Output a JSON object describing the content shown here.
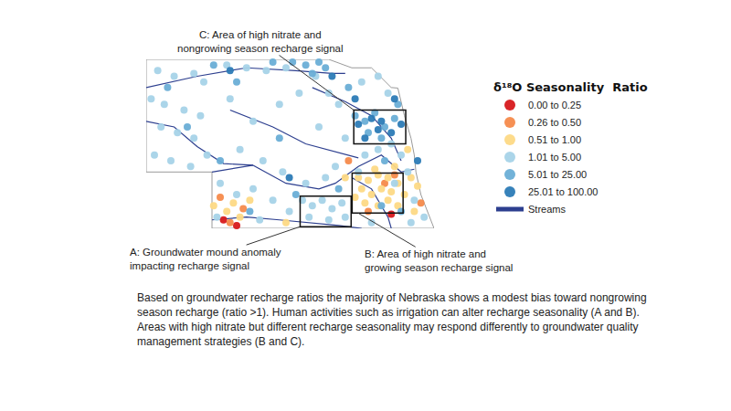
{
  "chart_data": {
    "type": "scatter",
    "xlim": [
      -104.05,
      -95.3
    ],
    "ylim": [
      40,
      43
    ],
    "tick_labels": false,
    "grid": false,
    "legend_title": "δ¹⁸O Seasonality  Ratio",
    "boundary": {
      "color": "#9a9a9a",
      "x": [
        -104.05,
        -98.5,
        -97.8,
        -97.2,
        -96.6,
        -96.4,
        -96.2,
        -96.0,
        -95.9,
        -95.85,
        -95.7,
        -95.3,
        -102.05,
        -102.05,
        -104.05,
        -104.05
      ],
      "y": [
        43.0,
        43.0,
        42.85,
        42.85,
        42.5,
        42.49,
        42.0,
        41.6,
        41.3,
        41.0,
        40.6,
        40.0,
        40.0,
        41.0,
        41.0,
        43.0
      ]
    },
    "series": [
      {
        "name": "Streams",
        "type": "line",
        "color": "#2d3f8f",
        "line_style": "solid",
        "x": [
          -104.05,
          -103.2,
          -102.5,
          -101.7,
          -100.8,
          null,
          -102.05,
          -101.5,
          -100.8,
          null,
          -100.8,
          -99.8,
          -98.8,
          -98.3,
          -97.6,
          -96.9,
          -96.3,
          -95.9,
          null,
          -104.05,
          -102.5,
          -101.0,
          -99.5,
          -98.4,
          -98.0,
          null,
          -101.5,
          -100.2,
          -99.2,
          -98.2,
          -97.6,
          null,
          -99.0,
          -98.0,
          -97.2,
          -96.6,
          -96.3,
          null,
          -102.05,
          -101.0,
          -100.0,
          -99.0,
          -98.2,
          -97.5,
          null,
          -97.8,
          -97.2,
          -96.7,
          -96.6
        ],
        "y": [
          41.9,
          41.8,
          41.45,
          41.15,
          41.12,
          null,
          41.0,
          41.05,
          41.12,
          null,
          41.12,
          40.8,
          40.7,
          40.8,
          41.1,
          41.3,
          41.0,
          41.05,
          null,
          42.5,
          42.7,
          42.85,
          42.8,
          42.75,
          42.75,
          null,
          42.1,
          41.8,
          41.5,
          41.35,
          41.25,
          null,
          42.5,
          42.25,
          42.0,
          41.6,
          41.2,
          null,
          40.15,
          40.2,
          40.15,
          40.1,
          40.05,
          40.0,
          null,
          40.9,
          40.7,
          40.2,
          40.0
        ]
      },
      {
        "name": "0.00 to 0.25",
        "color": "#d7191c",
        "marker": "circle",
        "x": [
          -101.3,
          -96.6,
          -101.7
        ],
        "y": [
          40.05,
          40.25,
          40.15
        ]
      },
      {
        "name": "0.26 to 0.50",
        "color": "#f58a4b",
        "marker": "circle",
        "x": [
          -101.5,
          -101.1,
          -101.8,
          -96.8,
          -97.3,
          -96.5,
          -95.7,
          -97.9
        ],
        "y": [
          40.1,
          40.35,
          40.55,
          40.8,
          40.3,
          40.95,
          40.45,
          41.2
        ]
      },
      {
        "name": "0.51 to 1.00",
        "color": "#fdd985",
        "marker": "circle",
        "x": [
          -97.6,
          -97.3,
          -97.0,
          -96.7,
          -97.5,
          -97.2,
          -96.9,
          -96.6,
          -96.4,
          -97.4,
          -97.0,
          -96.7,
          -96.4,
          -97.7,
          -96.2,
          -97.1,
          -96.5,
          -102.0,
          -101.6,
          -101.2,
          -100.9,
          -101.4,
          -95.8,
          -95.9,
          -96.0,
          -98.0,
          -99.8,
          -96.1
        ],
        "y": [
          40.9,
          40.85,
          40.95,
          40.9,
          40.7,
          40.6,
          40.7,
          40.65,
          40.8,
          40.45,
          40.4,
          40.5,
          40.4,
          40.55,
          40.6,
          41.05,
          41.1,
          40.4,
          40.3,
          40.2,
          40.5,
          40.45,
          40.75,
          40.3,
          40.9,
          40.9,
          40.1,
          41.4
        ]
      },
      {
        "name": "1.01 to 5.00",
        "color": "#a6d3e8",
        "marker": "circle",
        "x": [
          -103.7,
          -103.2,
          -102.6,
          -102.3,
          -103.9,
          -103.5,
          -102.9,
          -102.4,
          -103.6,
          -103.1,
          -102.6,
          -103.8,
          -103.3,
          -102.7,
          -102.2,
          -101.6,
          -101.0,
          -100.4,
          -99.8,
          -101.5,
          -100.8,
          -100.0,
          -99.4,
          -101.2,
          -100.5,
          -99.9,
          -101.8,
          -101.3,
          -100.8,
          -100.2,
          -99.7,
          -101.9,
          -100.6,
          -99.3,
          -99.0,
          -98.7,
          -98.4,
          -98.1,
          -99.1,
          -98.5,
          -98.0,
          -99.2,
          -98.6,
          -98.3,
          -98.9,
          -98.5,
          -98.2,
          -98.8,
          -98.0,
          -97.4,
          -97.0,
          -96.6,
          -96.3,
          -96.1,
          -96.5,
          -95.9,
          -95.6,
          -96.0,
          -97.2,
          -97.6,
          -97.5,
          -97.0,
          -96.7
        ],
        "y": [
          42.8,
          42.7,
          42.75,
          42.6,
          42.3,
          42.2,
          42.1,
          42.0,
          41.8,
          41.7,
          41.6,
          41.3,
          41.2,
          41.1,
          41.3,
          42.9,
          42.85,
          42.8,
          42.85,
          42.3,
          41.9,
          42.2,
          42.4,
          41.4,
          41.2,
          41.0,
          40.8,
          40.6,
          40.7,
          40.5,
          40.3,
          40.2,
          40.15,
          40.5,
          40.4,
          40.5,
          40.35,
          40.45,
          40.2,
          40.15,
          40.2,
          40.8,
          40.9,
          41.1,
          42.7,
          42.4,
          42.2,
          41.8,
          41.6,
          41.3,
          41.4,
          41.5,
          41.3,
          41.0,
          40.8,
          40.5,
          40.2,
          40.1,
          40.1,
          41.0,
          42.6,
          42.7,
          42.4
        ]
      },
      {
        "name": "5.01 to 25.00",
        "color": "#6aaed6",
        "marker": "circle",
        "x": [
          -99.6,
          -99.2,
          -98.8,
          -99.0,
          -98.6,
          -102.0,
          -101.3,
          -100.2,
          -97.7,
          -97.4,
          -97.1,
          -96.8,
          -96.5,
          -97.3,
          -96.9,
          -103.4,
          -102.8,
          -101.8,
          -100.9,
          -99.5,
          -98.2,
          -96.9,
          -96.3,
          -96.8,
          -97.9,
          -96.4,
          -100.0
        ],
        "y": [
          42.95,
          42.9,
          42.95,
          42.75,
          42.85,
          42.9,
          42.6,
          42.95,
          42.0,
          41.9,
          42.05,
          41.8,
          41.95,
          41.7,
          41.6,
          42.5,
          41.8,
          41.2,
          40.3,
          40.6,
          40.7,
          40.4,
          40.3,
          41.2,
          42.5,
          42.2,
          41.6
        ]
      },
      {
        "name": "25.01 to 100.00",
        "color": "#2c7bb6",
        "marker": "circle",
        "x": [
          -97.6,
          -97.2,
          -96.9,
          -96.6,
          -97.4,
          -96.3,
          -97.0,
          -98.4,
          -96.5,
          -97.7,
          -101.5,
          -99.7,
          -95.8
        ],
        "y": [
          41.85,
          41.95,
          41.9,
          41.7,
          41.6,
          41.85,
          41.75,
          42.7,
          42.3,
          42.3,
          42.8,
          40.9,
          41.2
        ]
      }
    ],
    "annotations": [
      {
        "label": "C",
        "text": [
          "C: Area of high nitrate and",
          "nongrowing season recharge signal"
        ],
        "box": {
          "x": [
            -97.74,
            -96.16
          ],
          "y": [
            41.5,
            42.1
          ]
        }
      },
      {
        "label": "A",
        "text": [
          "A: Groundwater mound anomaly",
          "impacting recharge signal"
        ],
        "box": {
          "x": [
            -99.37,
            -97.82
          ],
          "y": [
            40.03,
            40.57
          ]
        }
      },
      {
        "label": "B",
        "text": [
          "B: Area of high nitrate and",
          "growing season recharge signal"
        ],
        "box": {
          "x": [
            -97.79,
            -96.24
          ],
          "y": [
            40.27,
            40.98
          ]
        }
      }
    ],
    "caption": [
      "Based on groundwater recharge ratios the majority of Nebraska shows a modest bias toward nongrowing",
      "season recharge (ratio >1). Human activities such as irrigation can alter recharge seasonality (A and B).",
      "Areas with high nitrate but different recharge seasonality may respond differently to groundwater quality",
      "management strategies (B and C)."
    ]
  }
}
